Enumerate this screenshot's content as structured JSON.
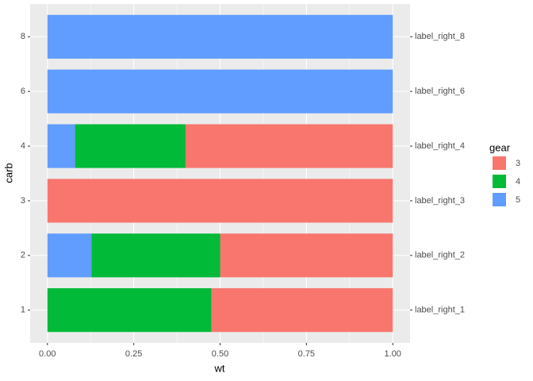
{
  "chart_data": {
    "type": "stacked-barh",
    "xlabel": "wt",
    "ylabel": "carb",
    "categories": [
      "1",
      "2",
      "3",
      "4",
      "6",
      "8"
    ],
    "right_labels": [
      "label_right_1",
      "label_right_2",
      "label_right_3",
      "label_right_4",
      "label_right_6",
      "label_right_8"
    ],
    "legend_title": "gear",
    "series": [
      {
        "name": "3",
        "color": "#F8766D",
        "values": [
          0.525,
          0.5,
          1,
          0.6,
          0,
          0
        ]
      },
      {
        "name": "4",
        "color": "#00BA38",
        "values": [
          0.475,
          0.372,
          0,
          0.32,
          0,
          0
        ]
      },
      {
        "name": "5",
        "color": "#619CFF",
        "values": [
          0,
          0.128,
          0,
          0.08,
          1,
          1
        ]
      }
    ],
    "stack_order": "reverse",
    "xlim": [
      -0.05,
      1.05
    ],
    "xticks": [
      {
        "value": 0,
        "label": "0.00"
      },
      {
        "value": 0.25,
        "label": "0.25"
      },
      {
        "value": 0.5,
        "label": "0.50"
      },
      {
        "value": 0.75,
        "label": "0.75"
      },
      {
        "value": 1,
        "label": "1.00"
      }
    ],
    "grid": true,
    "legend": "right"
  }
}
